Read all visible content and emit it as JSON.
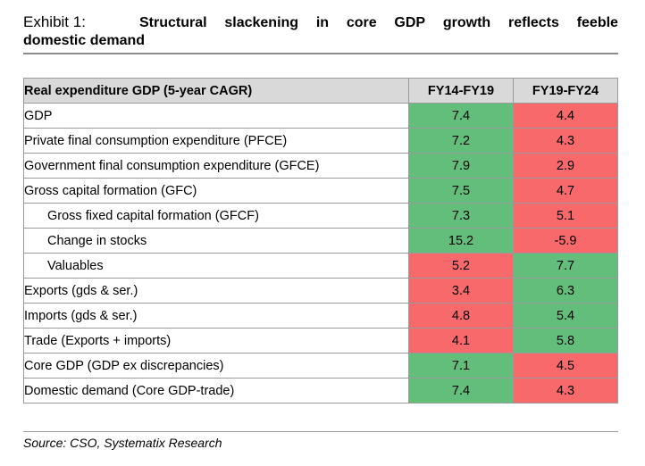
{
  "title": {
    "exhibit": "Exhibit 1:",
    "line1_words": [
      "Structural",
      "slackening",
      "in",
      "core",
      "GDP",
      "growth",
      "reflects",
      "feeble"
    ],
    "line2": "domestic demand"
  },
  "table": {
    "headers": [
      "Real expenditure GDP (5-year CAGR)",
      "FY14-FY19",
      "FY19-FY24"
    ],
    "rows": [
      {
        "label": "GDP",
        "fy14_19": "7.4",
        "fy19_24": "4.4"
      },
      {
        "label": "Private final consumption expenditure (PFCE)",
        "fy14_19": "7.2",
        "fy19_24": "4.3"
      },
      {
        "label": "Government final consumption expenditure (GFCE)",
        "fy14_19": "7.9",
        "fy19_24": "2.9"
      },
      {
        "label": "Gross capital formation (GFC)",
        "fy14_19": "7.5",
        "fy19_24": "4.7"
      },
      {
        "label": "Gross fixed capital formation (GFCF)",
        "fy14_19": "7.3",
        "fy19_24": "5.1"
      },
      {
        "label": "Change in stocks",
        "fy14_19": "15.2",
        "fy19_24": "-5.9"
      },
      {
        "label": "Valuables",
        "fy14_19": "5.2",
        "fy19_24": "7.7"
      },
      {
        "label": "Exports (gds & ser.)",
        "fy14_19": "3.4",
        "fy19_24": "6.3"
      },
      {
        "label": "Imports (gds & ser.)",
        "fy14_19": "4.8",
        "fy19_24": "5.4"
      },
      {
        "label": "Trade (Exports + imports)",
        "fy14_19": "4.1",
        "fy19_24": "5.8"
      },
      {
        "label": "Core GDP (GDP ex discrepancies)",
        "fy14_19": "7.1",
        "fy19_24": "4.5"
      },
      {
        "label": "Domestic demand (Core GDP-trade)",
        "fy14_19": "7.4",
        "fy19_24": "4.3"
      }
    ]
  },
  "colors": {
    "higher_period": "#63be7b",
    "lower_period": "#f8696b",
    "header_bg": "#d9d9d9"
  },
  "source": "Source: CSO, Systematix Research"
}
